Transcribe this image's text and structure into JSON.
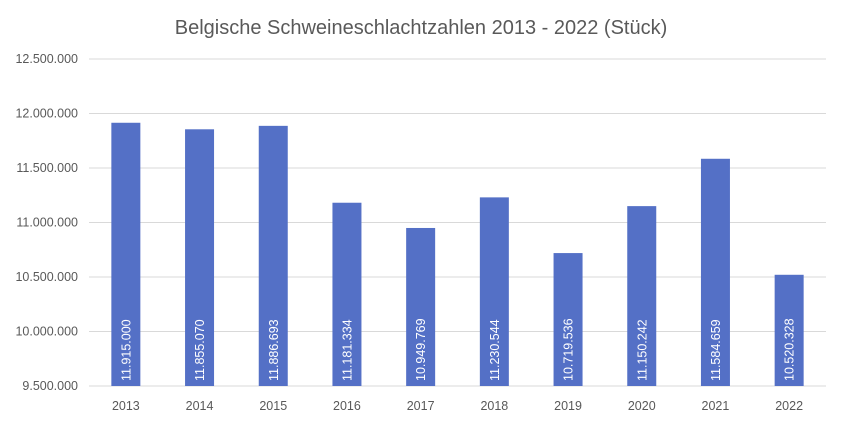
{
  "chart_data": {
    "type": "bar",
    "title": "Belgische Schweineschlachtzahlen 2013 - 2022 (Stück)",
    "xlabel": "",
    "ylabel": "",
    "categories": [
      "2013",
      "2014",
      "2015",
      "2016",
      "2017",
      "2018",
      "2019",
      "2020",
      "2021",
      "2022"
    ],
    "values": [
      11915000,
      11855070,
      11886693,
      11181334,
      10949769,
      11230544,
      10719536,
      11150242,
      11584659,
      10520328
    ],
    "data_labels": [
      "11.915.000",
      "11.855.070",
      "11.886.693",
      "11.181.334",
      "10.949.769",
      "11.230.544",
      "10.719.536",
      "11.150.242",
      "11.584.659",
      "10.520.328"
    ],
    "ylim": [
      9500000,
      12500000
    ],
    "yticks": [
      9500000,
      10000000,
      10500000,
      11000000,
      11500000,
      12000000,
      12500000
    ],
    "ytick_labels": [
      "9.500.000",
      "10.000.000",
      "10.500.000",
      "11.000.000",
      "11.500.000",
      "12.000.000",
      "12.500.000"
    ],
    "grid": true,
    "legend": "none",
    "colors": {
      "bar": "#5470C6",
      "grid": "#D9D9D9",
      "text": "#595959",
      "data_label": "#FFFFFF"
    }
  }
}
